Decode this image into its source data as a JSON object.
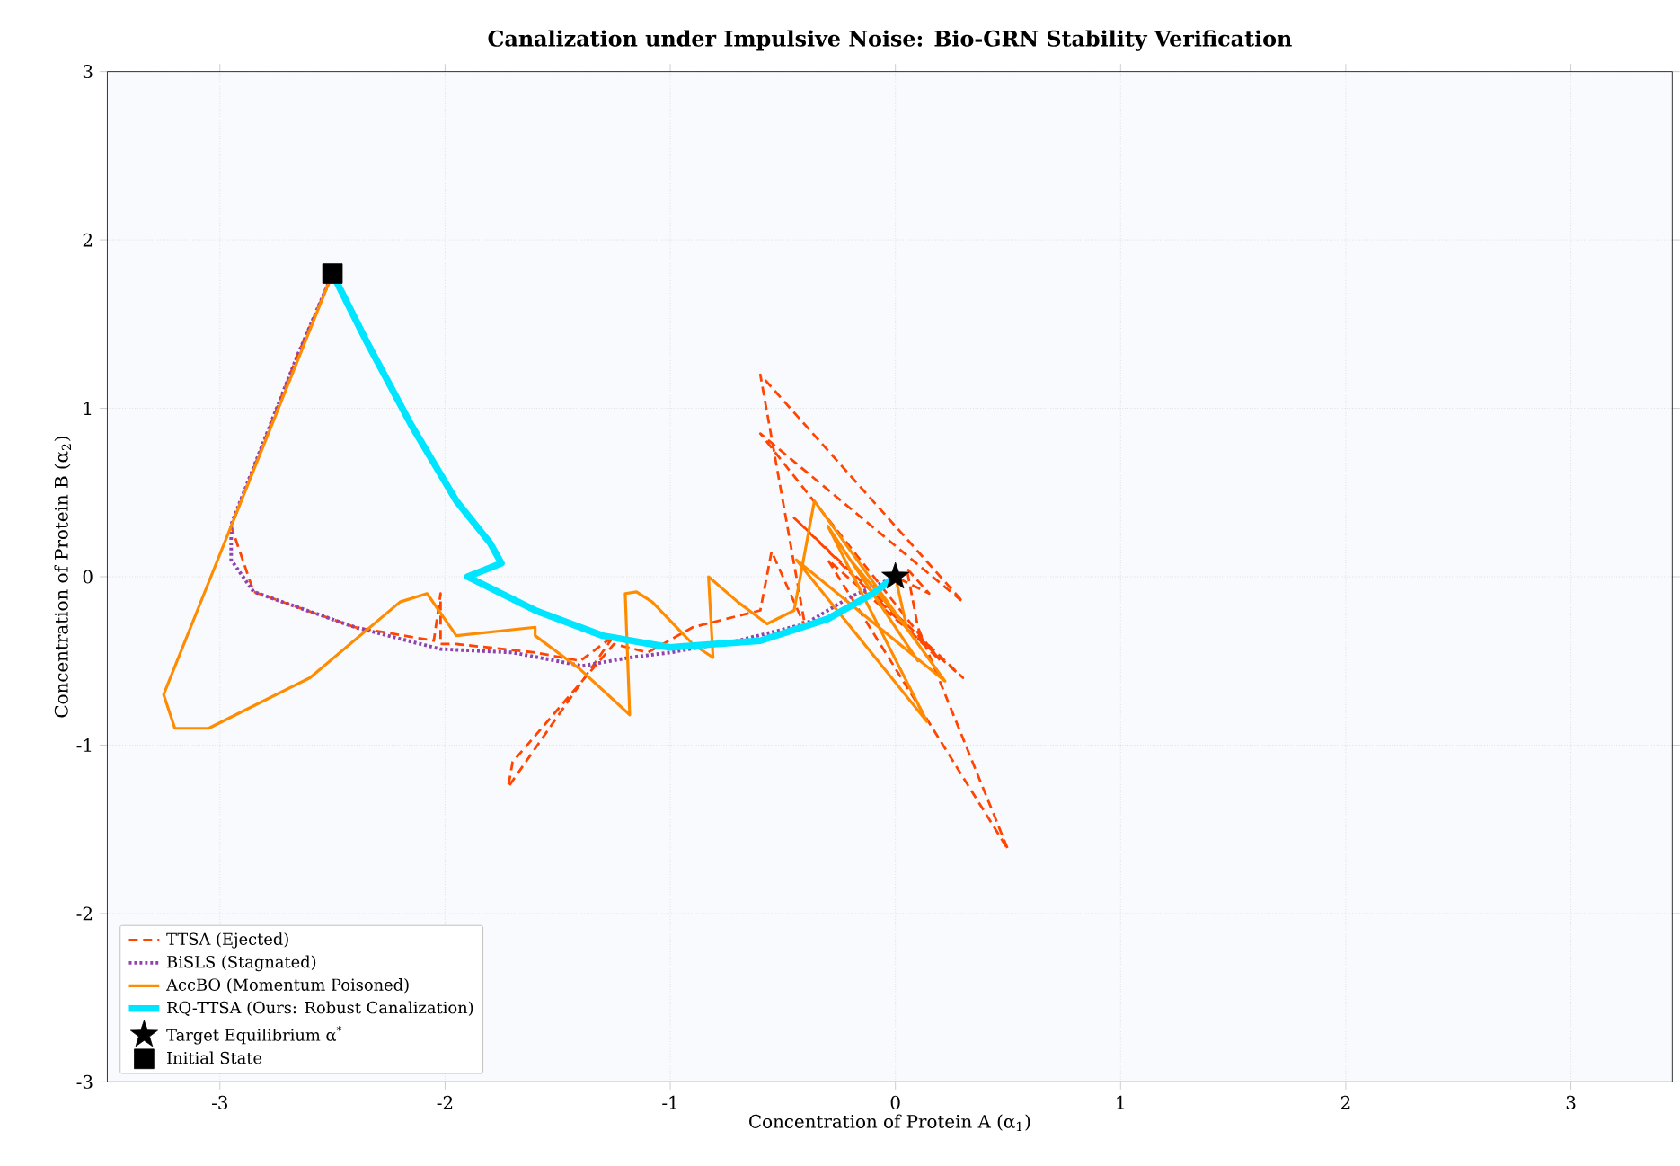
{
  "chart_data": {
    "type": "line",
    "title": "Canalization under Impulsive Noise: Bio-GRN Stability Verification",
    "xlabel": "Concentration of Protein A (α$_{1}$)",
    "ylabel": "Concentration of Protein B (α$_{2}$)",
    "xlim": [
      -3.5,
      3.45
    ],
    "ylim": [
      -3,
      3
    ],
    "xticks": [
      -3,
      -2,
      -1,
      0,
      1,
      2,
      3
    ],
    "yticks": [
      -3,
      -2,
      -1,
      0,
      1,
      2,
      3
    ],
    "grid": true,
    "legend": "bottom left",
    "series": [
      {
        "name": "TTSA (Ejected)",
        "color": "#ff4500",
        "line_style": "dashed",
        "marker": "none",
        "x": [
          -2.5,
          -2.66,
          -2.95,
          -2.85,
          -2.4,
          -2.05,
          -2.02,
          -2.02,
          -1.95,
          -1.6,
          -1.4,
          -1.25,
          -1.72,
          -1.7,
          -1.25,
          -1.1,
          -0.9,
          -0.6,
          -0.55,
          -0.4,
          -0.6,
          0.3,
          -0.6,
          0.2,
          -0.45,
          0.3,
          -0.3,
          0.5,
          0.1,
          0.05,
          0.15,
          0
        ],
        "values": [
          1.8,
          1.3,
          0.3,
          -0.09,
          -0.3,
          -0.38,
          -0.1,
          -0.4,
          -0.4,
          -0.45,
          -0.5,
          -0.35,
          -1.25,
          -1.1,
          -0.4,
          -0.45,
          -0.3,
          -0.2,
          0.15,
          -0.3,
          1.2,
          -0.15,
          0.85,
          -0.5,
          0.35,
          -0.6,
          0.1,
          -1.62,
          -0.3,
          0.05,
          -0.1,
          0
        ]
      },
      {
        "name": "BiSLS (Stagnated)",
        "color": "#8e44ad",
        "line_style": "dotted",
        "marker": "none",
        "x": [
          -2.5,
          -2.66,
          -2.95,
          -2.95,
          -2.85,
          -2.4,
          -2.02,
          -1.7,
          -1.39,
          -1.18,
          -1.0,
          -0.7,
          -0.4,
          -0.2,
          0
        ],
        "values": [
          1.8,
          1.3,
          0.31,
          0.1,
          -0.09,
          -0.3,
          -0.43,
          -0.45,
          -0.53,
          -0.48,
          -0.45,
          -0.38,
          -0.28,
          -0.12,
          0
        ]
      },
      {
        "name": "AccBO (Momentum Poisoned)",
        "color": "#ff8c00",
        "line_style": "solid",
        "marker": "none",
        "x": [
          -2.5,
          -3.1,
          -3.25,
          -3.2,
          -3.05,
          -2.6,
          -2.2,
          -2.08,
          -1.95,
          -1.6,
          -1.6,
          -1.4,
          -1.18,
          -1.2,
          -1.15,
          -1.08,
          -0.9,
          -0.81,
          -0.83,
          -0.7,
          -0.57,
          -0.45,
          -0.36,
          0.22,
          -0.44,
          0.14,
          -0.3,
          0.1,
          -0.2,
          0.05,
          0
        ],
        "values": [
          1.8,
          -0.2,
          -0.7,
          -0.9,
          -0.9,
          -0.6,
          -0.15,
          -0.1,
          -0.35,
          -0.3,
          -0.35,
          -0.55,
          -0.82,
          -0.1,
          -0.09,
          -0.15,
          -0.4,
          -0.48,
          0.0,
          -0.15,
          -0.28,
          -0.2,
          0.45,
          -0.62,
          0.1,
          -0.86,
          0.3,
          -0.5,
          0.1,
          -0.3,
          0
        ]
      },
      {
        "name": "RQ-TTSA (Ours: Robust Canalization)",
        "color": "#00e5ff",
        "line_style": "solid",
        "marker": "none",
        "x": [
          -2.5,
          -2.35,
          -2.15,
          -1.95,
          -1.8,
          -1.75,
          -1.9,
          -1.6,
          -1.3,
          -1.0,
          -0.6,
          -0.3,
          -0.1,
          0
        ],
        "values": [
          1.8,
          1.4,
          0.9,
          0.45,
          0.2,
          0.08,
          0.0,
          -0.2,
          -0.35,
          -0.42,
          -0.38,
          -0.25,
          -0.1,
          0
        ]
      },
      {
        "name": "Target Equilibrium α$^{*}$",
        "type": "scatter",
        "color": "#000000",
        "marker": "star",
        "x": [
          0
        ],
        "values": [
          0
        ]
      },
      {
        "name": "Initial State",
        "type": "scatter",
        "color": "#000000",
        "marker": "square",
        "x": [
          -2.5
        ],
        "values": [
          1.8
        ]
      }
    ]
  }
}
